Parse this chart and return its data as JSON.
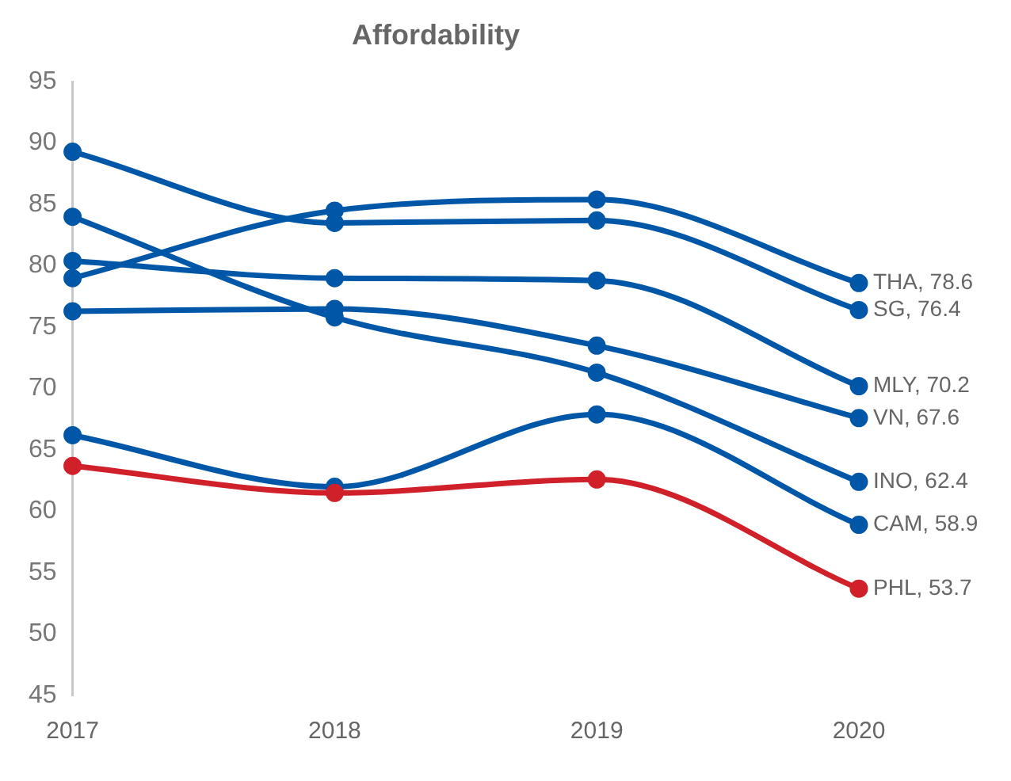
{
  "chart_data": {
    "type": "line",
    "title": "Affordability",
    "categories": [
      "2017",
      "2018",
      "2019",
      "2020"
    ],
    "ylim": [
      45,
      95
    ],
    "yticks": [
      45,
      50,
      55,
      60,
      65,
      70,
      75,
      80,
      85,
      90,
      95
    ],
    "grid": false,
    "legend": false,
    "marker": "circle",
    "line_style": "solid",
    "series": [
      {
        "name": "THA, 78.6",
        "color": "#0057a8",
        "values": [
          79.0,
          84.5,
          85.4,
          78.6
        ]
      },
      {
        "name": "SG, 76.4",
        "color": "#0057a8",
        "values": [
          89.3,
          83.5,
          83.7,
          76.4
        ]
      },
      {
        "name": "MLY, 70.2",
        "color": "#0057a8",
        "values": [
          80.4,
          79.0,
          78.8,
          70.2
        ]
      },
      {
        "name": "VN, 67.6",
        "color": "#0057a8",
        "values": [
          76.3,
          76.5,
          73.5,
          67.6
        ]
      },
      {
        "name": "INO, 62.4",
        "color": "#0057a8",
        "values": [
          84.0,
          75.8,
          71.3,
          62.4
        ]
      },
      {
        "name": "CAM, 58.9",
        "color": "#0057a8",
        "values": [
          66.2,
          62.0,
          67.9,
          58.9
        ]
      },
      {
        "name": "PHL, 53.7",
        "color": "#d0202a",
        "values": [
          63.7,
          61.5,
          62.6,
          53.7
        ]
      }
    ]
  }
}
